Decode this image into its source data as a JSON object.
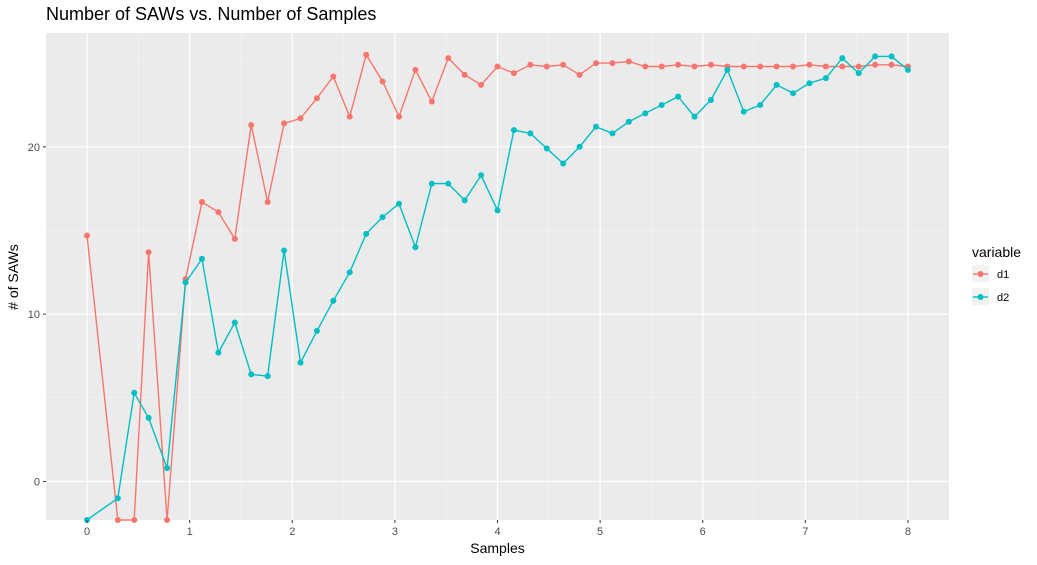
{
  "chart_data": {
    "type": "line",
    "title": "Number of SAWs vs. Number of Samples",
    "xlabel": "Samples",
    "ylabel": "# of SAWs",
    "xlim": [
      -0.4,
      8.4
    ],
    "ylim": [
      -2.3,
      26.8
    ],
    "xticks": [
      0,
      1,
      2,
      3,
      4,
      5,
      6,
      7,
      8
    ],
    "yticks": [
      0,
      10,
      20
    ],
    "grid": true,
    "legend": {
      "title": "variable",
      "position": "right"
    },
    "series": [
      {
        "name": "d1",
        "color": "#F8766D",
        "x": [
          0,
          0.3,
          0.46,
          0.6,
          0.78,
          0.96,
          1.12,
          1.28,
          1.44,
          1.6,
          1.76,
          1.92,
          2.08,
          2.24,
          2.4,
          2.56,
          2.72,
          2.88,
          3.04,
          3.2,
          3.36,
          3.52,
          3.68,
          3.84,
          4.0,
          4.16,
          4.32,
          4.48,
          4.64,
          4.8,
          4.96,
          5.12,
          5.28,
          5.44,
          5.6,
          5.76,
          5.92,
          6.08,
          6.24,
          6.4,
          6.56,
          6.72,
          6.88,
          7.04,
          7.2,
          7.36,
          7.52,
          7.68,
          7.84,
          8.0
        ],
        "y": [
          14.7,
          -2.3,
          -2.3,
          13.7,
          -2.3,
          12.1,
          16.7,
          16.1,
          14.5,
          21.3,
          16.7,
          21.4,
          21.7,
          22.9,
          24.2,
          21.8,
          25.5,
          23.9,
          21.8,
          24.6,
          22.7,
          25.3,
          24.3,
          23.7,
          24.8,
          24.4,
          24.9,
          24.8,
          24.9,
          24.3,
          25.0,
          25.0,
          25.1,
          24.8,
          24.8,
          24.9,
          24.8,
          24.9,
          24.8,
          24.8,
          24.8,
          24.8,
          24.8,
          24.9,
          24.8,
          24.8,
          24.8,
          24.9,
          24.9,
          24.8
        ]
      },
      {
        "name": "d2",
        "color": "#00BFC4",
        "x": [
          0,
          0.3,
          0.46,
          0.6,
          0.78,
          0.96,
          1.12,
          1.28,
          1.44,
          1.6,
          1.76,
          1.92,
          2.08,
          2.24,
          2.4,
          2.56,
          2.72,
          2.88,
          3.04,
          3.2,
          3.36,
          3.52,
          3.68,
          3.84,
          4.0,
          4.16,
          4.32,
          4.48,
          4.64,
          4.8,
          4.96,
          5.12,
          5.28,
          5.44,
          5.6,
          5.76,
          5.92,
          6.08,
          6.24,
          6.4,
          6.56,
          6.72,
          6.88,
          7.04,
          7.2,
          7.36,
          7.52,
          7.68,
          7.84,
          8.0
        ],
        "y": [
          -2.3,
          -1.0,
          5.3,
          3.8,
          0.8,
          11.9,
          13.3,
          7.7,
          9.5,
          6.4,
          6.3,
          13.8,
          7.1,
          9.0,
          10.8,
          12.5,
          14.8,
          15.8,
          16.6,
          14.0,
          17.8,
          17.8,
          16.8,
          18.3,
          16.2,
          21.0,
          20.8,
          19.9,
          19.0,
          20.0,
          21.2,
          20.8,
          21.5,
          22.0,
          22.5,
          23.0,
          21.8,
          22.8,
          24.6,
          22.1,
          22.5,
          23.7,
          23.2,
          23.8,
          24.1,
          25.3,
          24.4,
          25.4,
          25.4,
          24.6
        ]
      }
    ]
  }
}
